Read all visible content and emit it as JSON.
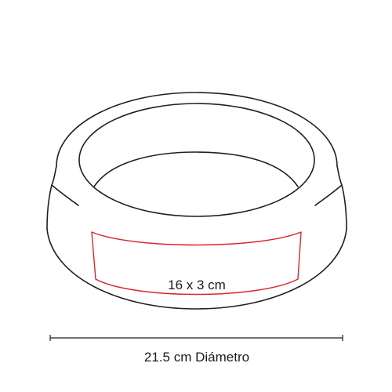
{
  "product": {
    "print_area_label": "16 x 3 cm",
    "diameter_label": "21.5 cm Diámetro"
  },
  "colors": {
    "outline": "#231f20",
    "print_area": "#d9262c",
    "background": "#ffffff"
  }
}
